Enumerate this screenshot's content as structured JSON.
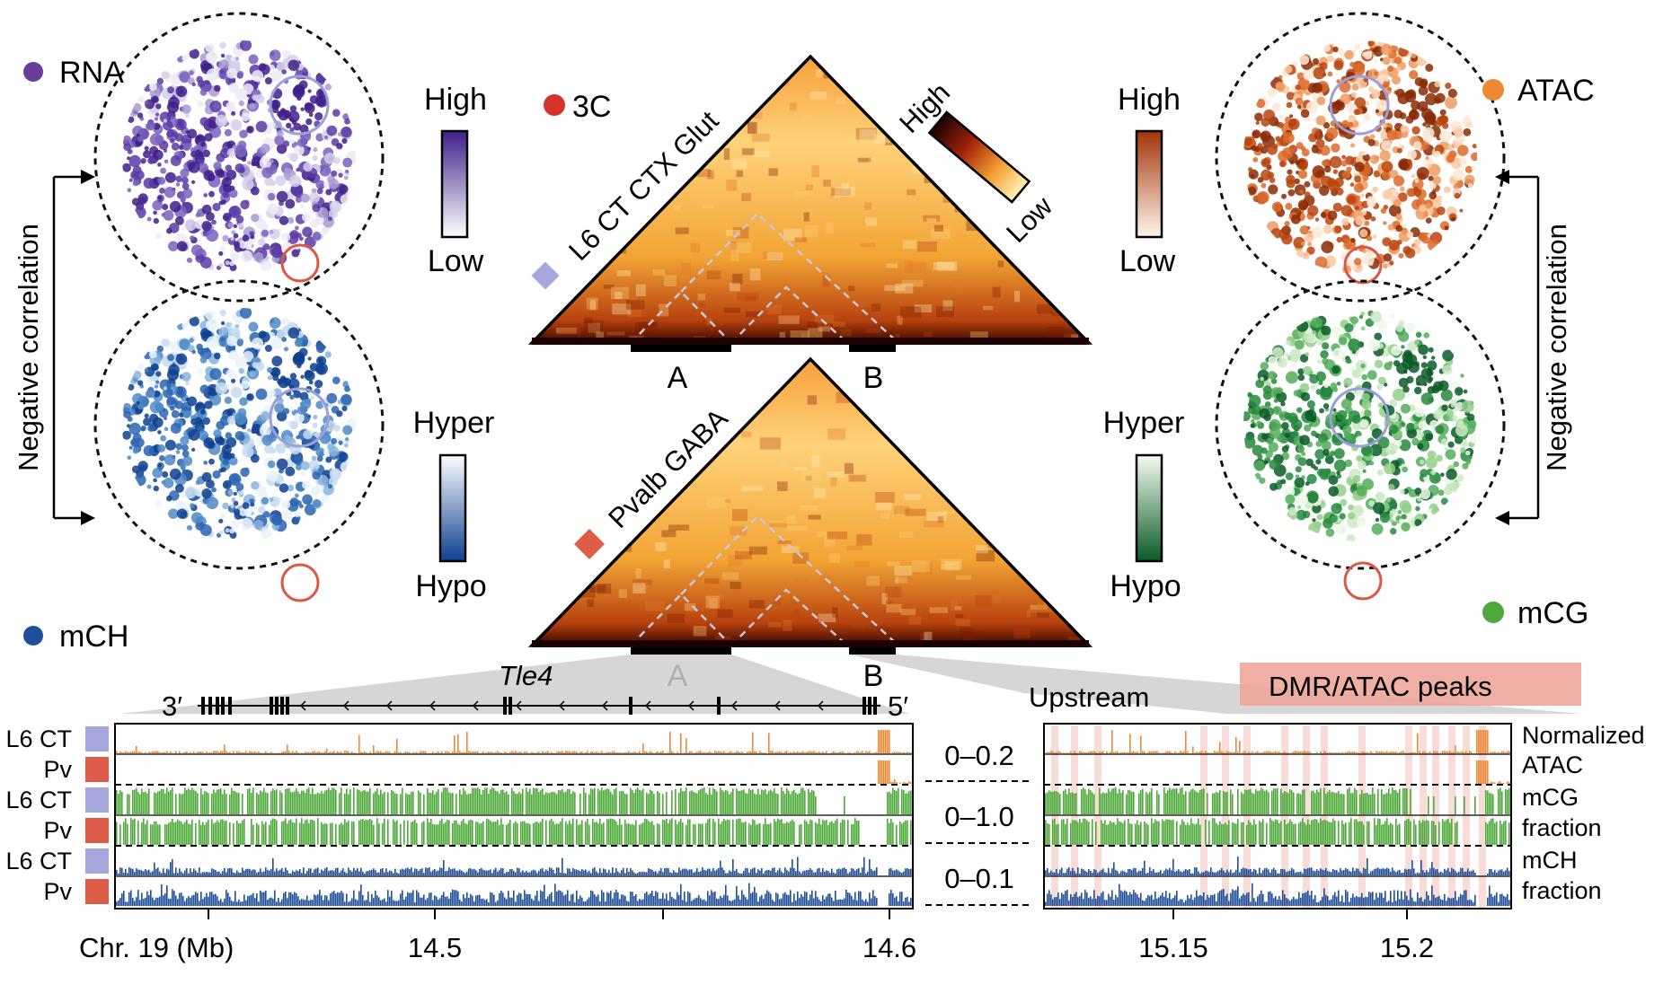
{
  "colors": {
    "rna": "#6a3d9a",
    "mch": "#1f4e9a",
    "atac": "#ec8a33",
    "mcg": "#4daa3a",
    "hic": "#d6322b",
    "l6ct": "#a6a8dd",
    "pv": "#dc5c47",
    "dmr_band": "#f0b2a8"
  },
  "umaps": {
    "rna": {
      "legend": "RNA",
      "scale_top": "High",
      "scale_bottom": "Low"
    },
    "mch": {
      "legend": "mCH",
      "scale_top": "Hyper",
      "scale_bottom": "Hypo"
    },
    "atac": {
      "legend": "ATAC",
      "scale_top": "High",
      "scale_bottom": "Low"
    },
    "mcg": {
      "legend": "mCG",
      "scale_top": "Hyper",
      "scale_bottom": "Hypo"
    }
  },
  "left_arrow_label": "Negative correlation",
  "right_arrow_label": "Negative correlation",
  "hic": {
    "legend": "3C",
    "scale_top": "High",
    "scale_bottom": "Low",
    "top_celltype": "L6 CT CTX Glut",
    "bottom_celltype": "Pvalb GABA",
    "region_a": "A",
    "region_b": "B"
  },
  "gene": {
    "name": "Tle4",
    "end_3": "3′",
    "end_5": "5′"
  },
  "upstream_label": "Upstream",
  "peaks_label": "DMR/ATAC peaks",
  "tracks": {
    "rows": [
      "L6 CT",
      "Pv",
      "L6 CT",
      "Pv",
      "L6 CT",
      "Pv"
    ],
    "ranges": [
      "0–0.2",
      "0–1.0",
      "0–0.1"
    ],
    "right_labels": [
      "Normalized",
      "ATAC",
      "mCG",
      "fraction",
      "mCH",
      "fraction"
    ]
  },
  "axis": {
    "chrom_label": "Chr. 19 (Mb)",
    "left_ticks": [
      "14.5",
      "14.6"
    ],
    "right_ticks": [
      "15.15",
      "15.2"
    ]
  }
}
